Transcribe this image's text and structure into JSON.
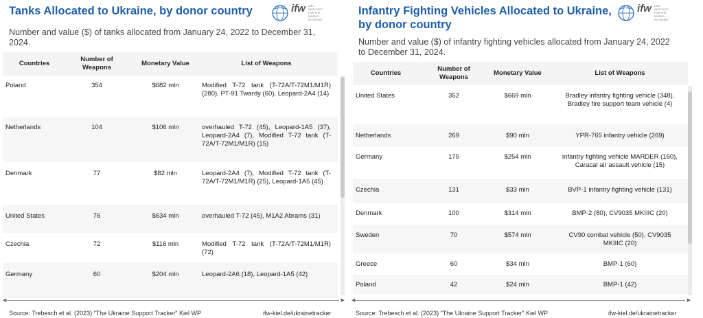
{
  "chart_data": [
    {
      "type": "table",
      "title": "Tanks Allocated to Ukraine, by donor country",
      "subtitle": "Number and value ($) of tanks allocated from January 24, 2022 to December 31, 2024.",
      "columns": [
        "Countries",
        "Number of Weapons",
        "Monetary Value",
        "List of Weapons"
      ],
      "rows": [
        {
          "country": "Poland",
          "number": "354",
          "value": "$682 mln",
          "list": "Modified T-72 tank (T-72A/T-72M1/M1R) (280), PT-91 Twardy (60), Leopard-2A4 (14)"
        },
        {
          "country": "Netherlands",
          "number": "104",
          "value": "$106 mln",
          "list": "overhauled T-72 (45), Leopard-1A5 (37), Leopard-2A4 (7), Modified T-72 tank (T-72A/T-72M1/M1R) (15)"
        },
        {
          "country": "Denmark",
          "number": "77",
          "value": "$82 mln",
          "list": "Leopard-2A4 (7), Modified T-72 tank (T-72A/T-72M1/M1R) (25), Leopard-1A5 (45)"
        },
        {
          "country": "United States",
          "number": "76",
          "value": "$634 mln",
          "list": "overhauled T-72 (45), M1A2 Abrams (31)"
        },
        {
          "country": "Czechia",
          "number": "72",
          "value": "$116 mln",
          "list": "Modified T-72 tank (T-72A/T-72M1/M1R) (72)"
        },
        {
          "country": "Germany",
          "number": "60",
          "value": "$204 mln",
          "list": "Leopard-2A6 (18), Leopard-1A5 (42)"
        }
      ],
      "source": "Source: Trebesch et al. (2023) \"The Ukraine Support Tracker\" Kiel WP",
      "link": "ifw-kiel.de/ukrainetracker"
    },
    {
      "type": "table",
      "title": "Infantry Fighting Vehicles Allocated to Ukraine, by donor country",
      "subtitle": "Number and value ($) of infantry fighting vehicles allocated from January 24, 2022 to December 31, 2024.",
      "columns": [
        "Countries",
        "Number of Weapons",
        "Monetary Value",
        "List of Weapons"
      ],
      "rows": [
        {
          "country": "United States",
          "number": "352",
          "value": "$669 mln",
          "list": "Bradley infantry fighting vehicle (348), Bradley fire support team vehicle (4)"
        },
        {
          "country": "Netherlands",
          "number": "269",
          "value": "$90 mln",
          "list": "YPR-765 infantry vehicle (269)"
        },
        {
          "country": "Germany",
          "number": "175",
          "value": "$254 mln",
          "list": "infantry fighting vehicle MARDER (160), Caracal air assault vehicle (15)"
        },
        {
          "country": "Czechia",
          "number": "131",
          "value": "$33 mln",
          "list": "BVP-1 infantry fighting vehicle (131)"
        },
        {
          "country": "Denmark",
          "number": "100",
          "value": "$314 mln",
          "list": "BMP-2 (80), CV9035 MKIIIC (20)"
        },
        {
          "country": "Sweden",
          "number": "70",
          "value": "$574 mln",
          "list": "CV90 combat vehicle (50), CV9035 MKIIIC (20)"
        },
        {
          "country": "Greece",
          "number": "60",
          "value": "$34 mln",
          "list": "BMP-1 (60)"
        },
        {
          "country": "Poland",
          "number": "42",
          "value": "$24 mln",
          "list": "BMP-1 (42)"
        }
      ],
      "source": "Source: Trebesch et al. (2023) \"The Ukraine Support Tracker\" Kiel WP",
      "link": "ifw-kiel.de/ukrainetracker"
    }
  ],
  "logo": {
    "text": "ifw",
    "small": "KIEL INSTITUTE FOR THE WORLD ECONOMY"
  },
  "colors": {
    "title": "#1f5fa8",
    "header_bg": "#f4f4f4",
    "alt_row": "#f6f6f6"
  }
}
